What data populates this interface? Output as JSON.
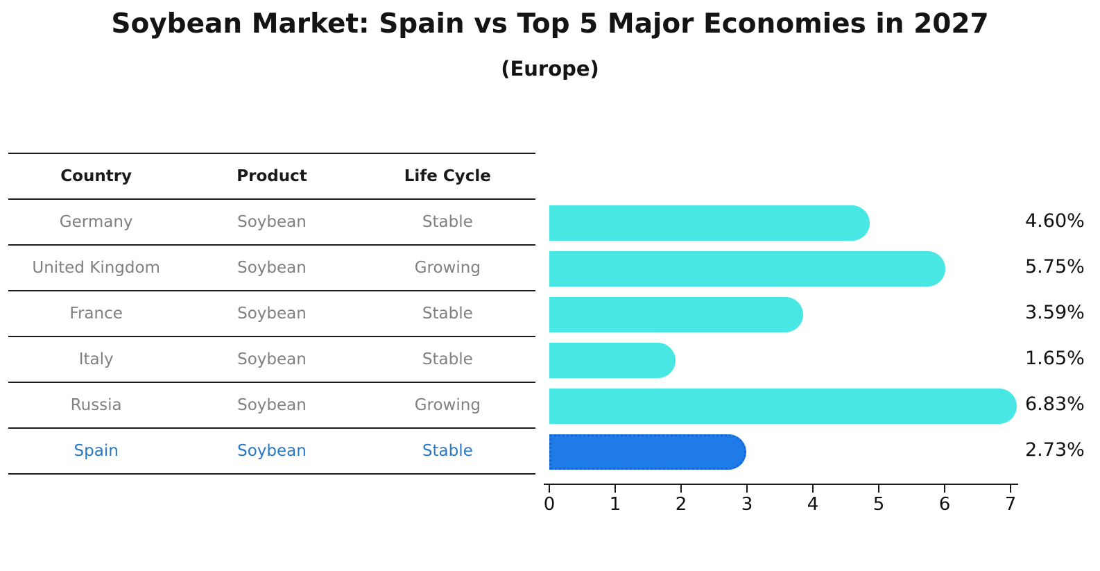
{
  "title": "Soybean Market: Spain vs Top 5 Major Economies in 2027",
  "subtitle": "(Europe)",
  "table": {
    "headers": [
      "Country",
      "Product",
      "Life Cycle"
    ],
    "rows": [
      {
        "country": "Germany",
        "product": "Soybean",
        "life_cycle": "Stable",
        "highlighted": false
      },
      {
        "country": "United Kingdom",
        "product": "Soybean",
        "life_cycle": "Growing",
        "highlighted": false
      },
      {
        "country": "France",
        "product": "Soybean",
        "life_cycle": "Stable",
        "highlighted": false
      },
      {
        "country": "Italy",
        "product": "Soybean",
        "life_cycle": "Stable",
        "highlighted": false
      },
      {
        "country": "Russia",
        "product": "Soybean",
        "life_cycle": "Growing",
        "highlighted": false
      },
      {
        "country": "Spain",
        "product": "Soybean",
        "life_cycle": "Stable",
        "highlighted": true
      }
    ]
  },
  "chart_data": {
    "type": "bar",
    "orientation": "horizontal",
    "title": "Soybean Market: Spain vs Top 5 Major Economies in 2027",
    "subtitle": "(Europe)",
    "categories": [
      "Germany",
      "United Kingdom",
      "France",
      "Italy",
      "Russia",
      "Spain"
    ],
    "values": [
      4.6,
      5.75,
      3.59,
      1.65,
      6.83,
      2.73
    ],
    "value_labels": [
      "4.60%",
      "5.75%",
      "3.59%",
      "1.65%",
      "6.83%",
      "2.73%"
    ],
    "xlim": [
      0,
      7
    ],
    "x_ticks": [
      "0",
      "1",
      "2",
      "3",
      "4",
      "5",
      "6",
      "7"
    ],
    "highlight_index": 5,
    "grid": false,
    "legend_position": "none"
  },
  "colors": {
    "bar": "#48E7E3",
    "highlight_bar": "#1E7BE8",
    "highlight_border": "#1565D0",
    "highlight_text": "#2878C8",
    "cell_text": "#808080",
    "header_text": "#1A1A1A",
    "label_text": "#111111"
  }
}
